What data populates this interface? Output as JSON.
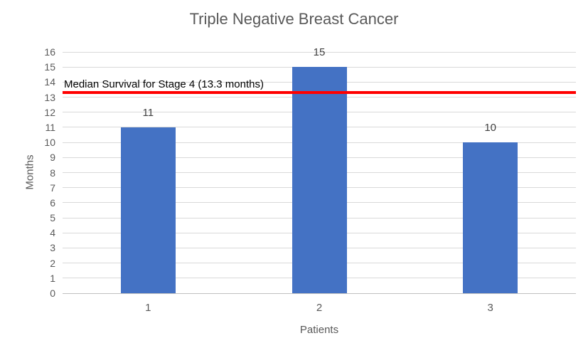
{
  "chart_data": {
    "type": "bar",
    "title": "Triple Negative Breast Cancer",
    "xlabel": "Patients",
    "ylabel": "Months",
    "categories": [
      "1",
      "2",
      "3"
    ],
    "values": [
      11,
      15,
      10
    ],
    "data_labels": [
      "11",
      "15",
      "10"
    ],
    "ylim": [
      0,
      16
    ],
    "ytick_step": 1,
    "ytick_labels": [
      "0",
      "1",
      "2",
      "3",
      "4",
      "5",
      "6",
      "7",
      "8",
      "9",
      "10",
      "11",
      "12",
      "13",
      "14",
      "15",
      "16"
    ],
    "grid": true,
    "legend": "none",
    "reference_line": {
      "label": "Median Survival for Stage 4 (13.3 months)",
      "value": 13.3
    },
    "colors": {
      "bar": "#4472C4",
      "reference_line": "#FF0000",
      "gridline": "#D9D9D9",
      "axis_line": "#BFBFBF",
      "axis_text": "#595959",
      "title_text": "#595959",
      "data_label_text": "#404040",
      "reference_label_text": "#000000"
    }
  }
}
